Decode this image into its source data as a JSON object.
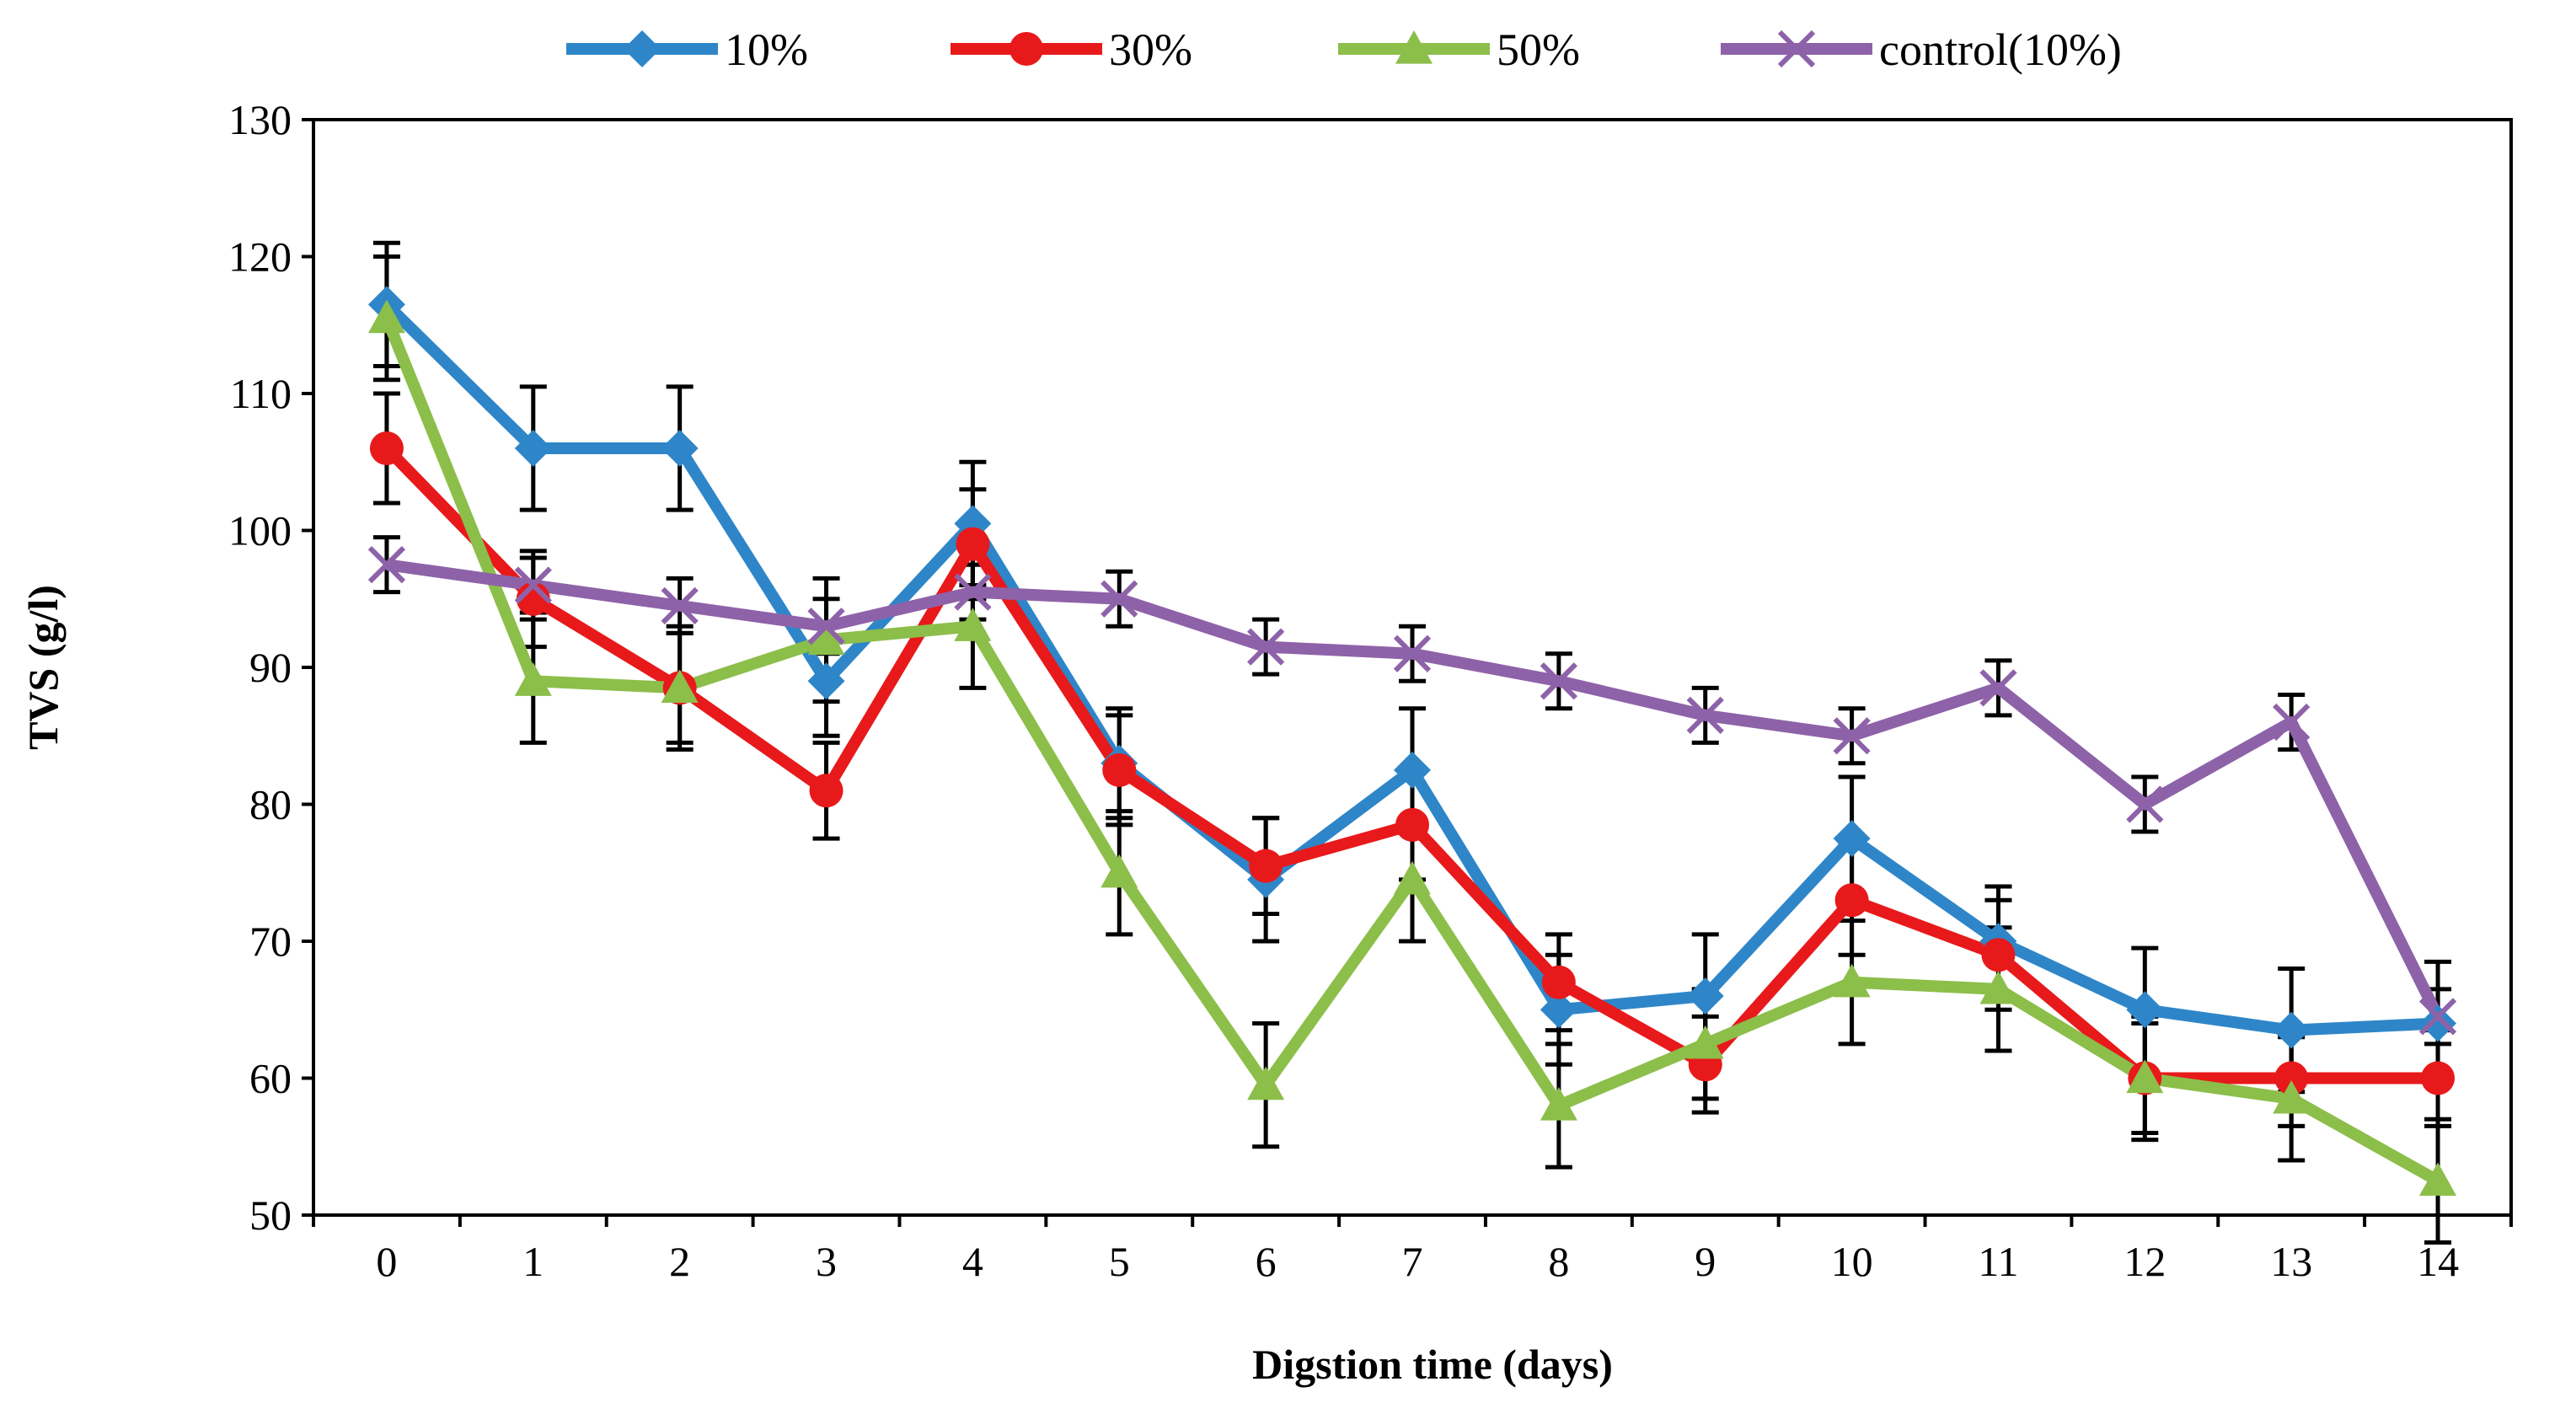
{
  "chart_data": {
    "type": "line",
    "xlabel": "Digstion time (days)",
    "ylabel": "TVS (g/l)",
    "x": [
      0,
      1,
      2,
      3,
      4,
      5,
      6,
      7,
      8,
      9,
      10,
      11,
      12,
      13,
      14
    ],
    "xlim": [
      0,
      14
    ],
    "ylim": [
      50,
      130
    ],
    "yticks": [
      50,
      60,
      70,
      80,
      90,
      100,
      110,
      120,
      130
    ],
    "grid": false,
    "legend_position": "top",
    "error_bars": true,
    "series": [
      {
        "name": "10%",
        "color": "#2E86C8",
        "marker": "diamond",
        "values": [
          116.5,
          106,
          106,
          89,
          100.5,
          83,
          74.5,
          82.5,
          65,
          66,
          77.5,
          70,
          65,
          63.5,
          64
        ],
        "errors": [
          4.5,
          4.5,
          4.5,
          4,
          4.5,
          4,
          4.5,
          4.5,
          4,
          4.5,
          4.5,
          4,
          4.5,
          4.5,
          4.5
        ]
      },
      {
        "name": "30%",
        "color": "#E8191B",
        "marker": "circle",
        "values": [
          106,
          95,
          88.5,
          81,
          99,
          82.5,
          75.5,
          78.5,
          67,
          61,
          73,
          69,
          60,
          60,
          60
        ],
        "errors": [
          4,
          3.5,
          4,
          3.5,
          4,
          4,
          3.5,
          4,
          3.5,
          3.5,
          4,
          4,
          4,
          3.5,
          3.5
        ]
      },
      {
        "name": "50%",
        "color": "#8CBE4A",
        "marker": "triangle",
        "values": [
          115.5,
          89,
          88.5,
          92,
          93,
          75,
          59.5,
          74.5,
          58,
          62.5,
          67,
          66.5,
          60,
          58.5,
          52.5
        ],
        "errors": [
          4.5,
          4.5,
          4.5,
          4.5,
          4.5,
          4.5,
          4.5,
          4.5,
          4.5,
          4,
          4.5,
          4.5,
          4.5,
          4.5,
          4.5
        ]
      },
      {
        "name": "control(10%)",
        "color": "#8E62A8",
        "marker": "x",
        "values": [
          97.5,
          96,
          94.5,
          93,
          95.5,
          95,
          91.5,
          91,
          89,
          86.5,
          85,
          88.5,
          80,
          86,
          64.5
        ],
        "errors": [
          2,
          2,
          2,
          2,
          2,
          2,
          2,
          2,
          2,
          2,
          2,
          2,
          2,
          2,
          2
        ]
      }
    ]
  }
}
